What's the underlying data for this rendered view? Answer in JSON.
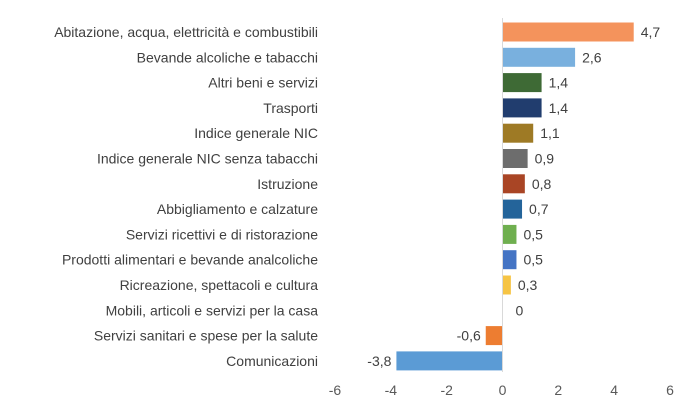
{
  "chart_data": {
    "type": "bar",
    "orientation": "horizontal",
    "title": "",
    "xlabel": "",
    "ylabel": "",
    "xlim": [
      -6,
      6
    ],
    "x_ticks": [
      -6,
      -4,
      -2,
      0,
      2,
      4,
      6
    ],
    "x_tick_labels": [
      "-6",
      "-4",
      "-2",
      "0",
      "2",
      "4",
      "6"
    ],
    "grid": false,
    "legend": "none",
    "categories": [
      "Abitazione, acqua, elettricità e combustibili",
      "Bevande alcoliche e tabacchi",
      "Altri beni e servizi",
      "Trasporti",
      "Indice generale NIC",
      "Indice generale NIC senza tabacchi",
      "Istruzione",
      "Abbigliamento e calzature",
      "Servizi ricettivi e di ristorazione",
      "Prodotti alimentari e bevande analcoliche",
      "Ricreazione, spettacoli e cultura",
      "Mobili, articoli e servizi per la casa",
      "Servizi sanitari e spese per la salute",
      "Comunicazioni"
    ],
    "values": [
      4.7,
      2.6,
      1.4,
      1.4,
      1.1,
      0.9,
      0.8,
      0.7,
      0.5,
      0.5,
      0.3,
      0,
      -0.6,
      -3.8
    ],
    "value_labels": [
      "4,7",
      "2,6",
      "1,4",
      "1,4",
      "1,1",
      "0,9",
      "0,8",
      "0,7",
      "0,5",
      "0,5",
      "0,3",
      "0",
      "-0,6",
      "-3,8"
    ],
    "colors": [
      "#F4935C",
      "#79B0DE",
      "#3E6A35",
      "#213D6E",
      "#9E7A25",
      "#6D6D6D",
      "#A94525",
      "#24649A",
      "#6FAF4F",
      "#4474C4",
      "#F6C444",
      "#A5A5A5",
      "#ED7D31",
      "#5B9BD5"
    ],
    "axis_color": "#D9D9D9"
  }
}
